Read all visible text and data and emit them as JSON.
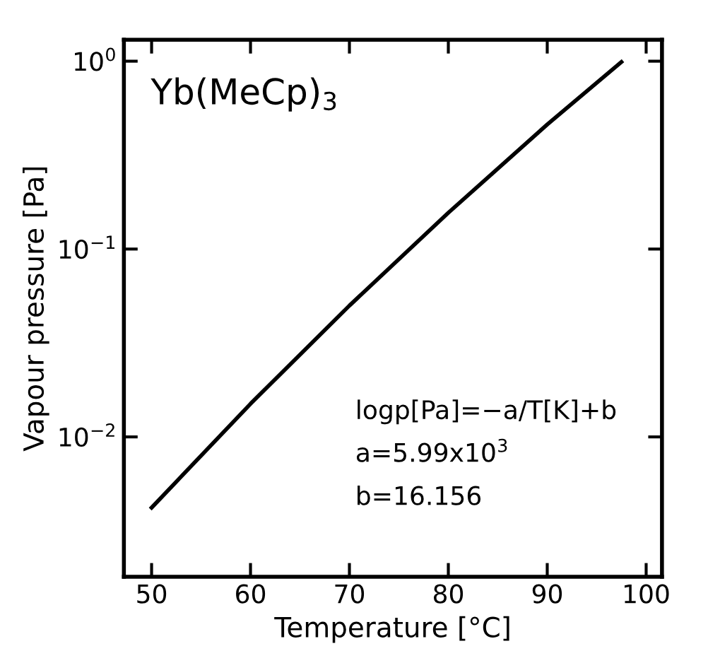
{
  "chart_data": {
    "type": "line",
    "xlabel": "Temperature [°C]",
    "ylabel": "Vapour pressure [Pa]",
    "x": [
      50,
      60,
      70,
      80,
      90,
      97.5
    ],
    "series": [
      {
        "color": "#000000",
        "values": [
          0.0042,
          0.015,
          0.05,
          0.156,
          0.46,
          0.99
        ]
      }
    ],
    "log": "y",
    "xlim": [
      47.2,
      101.6
    ],
    "ylim": [
      0.0018,
      1.3
    ],
    "xticks": [
      50,
      60,
      70,
      80,
      90,
      100
    ],
    "yticks": [
      {
        "value": 0.01,
        "label": "10$^{−2}$"
      },
      {
        "value": 0.1,
        "label": "10$^{−1}$"
      },
      {
        "value": 1,
        "label": "10$^{0}$"
      }
    ],
    "grid": false,
    "marker": "none",
    "line_style": "solid",
    "annotations": [
      "Yb(MeCp)$_{3}$",
      "logp[Pa]=−a/T[K]+b",
      "a=5.99x10$^{3}$",
      "b=16.156"
    ]
  }
}
